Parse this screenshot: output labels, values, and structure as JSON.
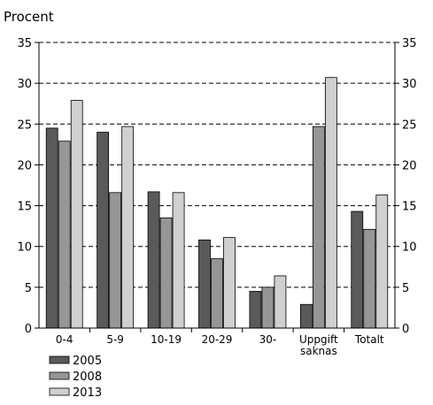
{
  "chart_data": {
    "type": "bar",
    "ylabel": "Procent",
    "ylim": [
      0,
      35
    ],
    "yticks": [
      0,
      5,
      10,
      15,
      20,
      25,
      30,
      35
    ],
    "grid": "horizontal-dashed",
    "right_axis": true,
    "legend_position": "bottom-left",
    "categories": [
      "0-4",
      "5-9",
      "10-19",
      "20-29",
      "30-",
      "Uppgift saknas",
      "Totalt"
    ],
    "series": [
      {
        "name": "2005",
        "color": "#5a5a5a",
        "values": [
          24.5,
          24.0,
          16.7,
          10.8,
          4.5,
          2.9,
          14.3
        ]
      },
      {
        "name": "2008",
        "color": "#969696",
        "values": [
          22.9,
          16.6,
          13.5,
          8.5,
          5.0,
          24.7,
          12.1
        ]
      },
      {
        "name": "2013",
        "color": "#d0d0d0",
        "values": [
          27.9,
          24.7,
          16.6,
          11.1,
          6.4,
          30.7,
          16.3
        ]
      }
    ]
  }
}
